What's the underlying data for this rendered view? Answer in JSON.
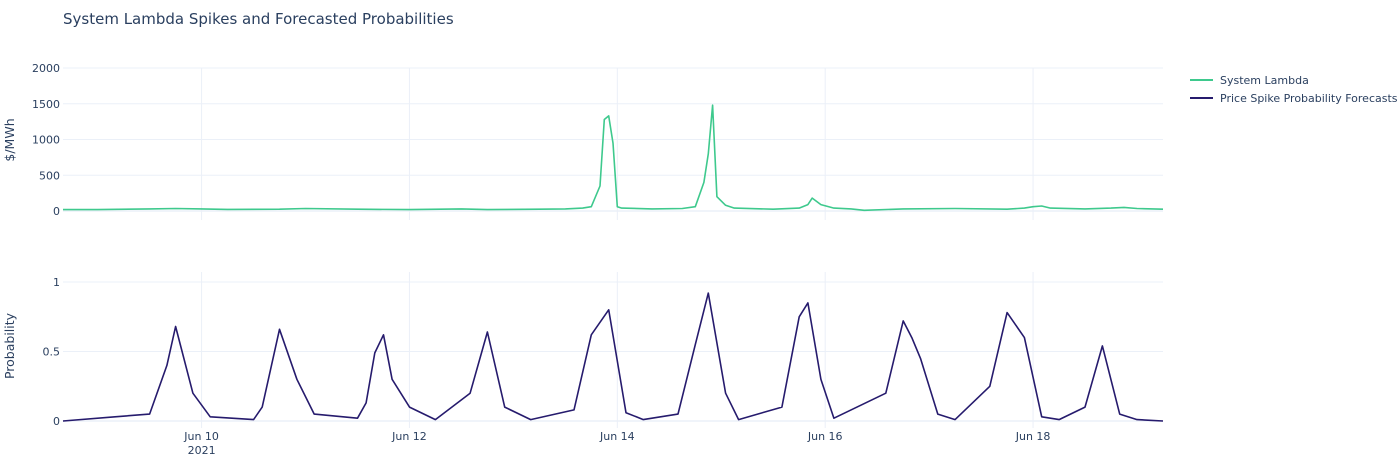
{
  "chart_data": {
    "type": "line",
    "title": "System Lambda Spikes and Forecasted Probabilities",
    "x_range": [
      "2021-06-08 16:00",
      "2021-06-19 06:00"
    ],
    "x_ticks": [
      {
        "value": "2021-06-10",
        "label": "Jun 10",
        "sublabel": "2021"
      },
      {
        "value": "2021-06-12",
        "label": "Jun 12",
        "sublabel": ""
      },
      {
        "value": "2021-06-14",
        "label": "Jun 14",
        "sublabel": ""
      },
      {
        "value": "2021-06-16",
        "label": "Jun 16",
        "sublabel": ""
      },
      {
        "value": "2021-06-18",
        "label": "Jun 18",
        "sublabel": ""
      }
    ],
    "legend": {
      "placement": "top-right",
      "entries": [
        {
          "name": "System Lambda",
          "color": "#3ec98d"
        },
        {
          "name": "Price Spike Probability Forecasts",
          "color": "#261b6d"
        }
      ]
    },
    "subplots": [
      {
        "ylabel": "$/MWh",
        "ylim": [
          0,
          2000
        ],
        "yticks": [
          {
            "value": 0,
            "label": "0"
          },
          {
            "value": 500,
            "label": "500"
          },
          {
            "value": 1000,
            "label": "1000"
          },
          {
            "value": 1500,
            "label": "1500"
          },
          {
            "value": 2000,
            "label": "2000"
          }
        ],
        "grid": true,
        "series": [
          {
            "name": "System Lambda",
            "color": "#3ec98d",
            "points": [
              [
                "2021-06-08 16:00",
                20
              ],
              [
                "2021-06-09 00:00",
                20
              ],
              [
                "2021-06-09 12:00",
                30
              ],
              [
                "2021-06-09 18:00",
                35
              ],
              [
                "2021-06-10 00:00",
                30
              ],
              [
                "2021-06-10 06:00",
                22
              ],
              [
                "2021-06-10 18:00",
                25
              ],
              [
                "2021-06-11 00:00",
                35
              ],
              [
                "2021-06-11 12:00",
                25
              ],
              [
                "2021-06-12 00:00",
                20
              ],
              [
                "2021-06-12 12:00",
                30
              ],
              [
                "2021-06-12 18:00",
                20
              ],
              [
                "2021-06-13 06:00",
                25
              ],
              [
                "2021-06-13 12:00",
                30
              ],
              [
                "2021-06-13 16:00",
                40
              ],
              [
                "2021-06-13 18:00",
                60
              ],
              [
                "2021-06-13 20:00",
                350
              ],
              [
                "2021-06-13 21:00",
                1280
              ],
              [
                "2021-06-13 22:00",
                1330
              ],
              [
                "2021-06-13 23:00",
                950
              ],
              [
                "2021-06-14 00:00",
                60
              ],
              [
                "2021-06-14 01:00",
                40
              ],
              [
                "2021-06-14 08:00",
                30
              ],
              [
                "2021-06-14 15:00",
                35
              ],
              [
                "2021-06-14 18:00",
                60
              ],
              [
                "2021-06-14 20:00",
                400
              ],
              [
                "2021-06-14 21:00",
                800
              ],
              [
                "2021-06-14 22:00",
                1480
              ],
              [
                "2021-06-14 23:00",
                200
              ],
              [
                "2021-06-15 01:00",
                80
              ],
              [
                "2021-06-15 03:00",
                40
              ],
              [
                "2021-06-15 12:00",
                25
              ],
              [
                "2021-06-15 18:00",
                40
              ],
              [
                "2021-06-15 20:00",
                90
              ],
              [
                "2021-06-15 21:00",
                180
              ],
              [
                "2021-06-15 23:00",
                90
              ],
              [
                "2021-06-16 02:00",
                40
              ],
              [
                "2021-06-16 06:00",
                30
              ],
              [
                "2021-06-16 09:00",
                10
              ],
              [
                "2021-06-16 18:00",
                30
              ],
              [
                "2021-06-17 06:00",
                35
              ],
              [
                "2021-06-17 18:00",
                25
              ],
              [
                "2021-06-17 22:00",
                40
              ],
              [
                "2021-06-18 00:00",
                60
              ],
              [
                "2021-06-18 02:00",
                70
              ],
              [
                "2021-06-18 04:00",
                40
              ],
              [
                "2021-06-18 12:00",
                30
              ],
              [
                "2021-06-18 18:00",
                40
              ],
              [
                "2021-06-18 21:00",
                50
              ],
              [
                "2021-06-19 00:00",
                35
              ],
              [
                "2021-06-19 06:00",
                25
              ]
            ]
          }
        ]
      },
      {
        "ylabel": "Probability",
        "ylim": [
          0,
          1.1
        ],
        "yticks": [
          {
            "value": 0,
            "label": "0"
          },
          {
            "value": 0.5,
            "label": "0.5"
          },
          {
            "value": 1,
            "label": "1"
          }
        ],
        "grid": true,
        "series": [
          {
            "name": "Price Spike Probability Forecasts",
            "color": "#261b6d",
            "points": [
              [
                "2021-06-08 16:00",
                0.0
              ],
              [
                "2021-06-09 04:00",
                0.03
              ],
              [
                "2021-06-09 12:00",
                0.05
              ],
              [
                "2021-06-09 16:00",
                0.4
              ],
              [
                "2021-06-09 18:00",
                0.68
              ],
              [
                "2021-06-09 22:00",
                0.2
              ],
              [
                "2021-06-10 02:00",
                0.03
              ],
              [
                "2021-06-10 12:00",
                0.01
              ],
              [
                "2021-06-10 14:00",
                0.1
              ],
              [
                "2021-06-10 18:00",
                0.66
              ],
              [
                "2021-06-10 22:00",
                0.3
              ],
              [
                "2021-06-11 02:00",
                0.05
              ],
              [
                "2021-06-11 12:00",
                0.02
              ],
              [
                "2021-06-11 14:00",
                0.13
              ],
              [
                "2021-06-11 16:00",
                0.49
              ],
              [
                "2021-06-11 18:00",
                0.62
              ],
              [
                "2021-06-11 20:00",
                0.3
              ],
              [
                "2021-06-12 00:00",
                0.1
              ],
              [
                "2021-06-12 06:00",
                0.01
              ],
              [
                "2021-06-12 14:00",
                0.2
              ],
              [
                "2021-06-12 18:00",
                0.64
              ],
              [
                "2021-06-12 22:00",
                0.1
              ],
              [
                "2021-06-13 04:00",
                0.01
              ],
              [
                "2021-06-13 14:00",
                0.08
              ],
              [
                "2021-06-13 18:00",
                0.62
              ],
              [
                "2021-06-13 22:00",
                0.8
              ],
              [
                "2021-06-14 02:00",
                0.06
              ],
              [
                "2021-06-14 06:00",
                0.01
              ],
              [
                "2021-06-14 14:00",
                0.05
              ],
              [
                "2021-06-14 18:00",
                0.55
              ],
              [
                "2021-06-14 21:00",
                0.92
              ],
              [
                "2021-06-15 01:00",
                0.2
              ],
              [
                "2021-06-15 04:00",
                0.01
              ],
              [
                "2021-06-15 14:00",
                0.1
              ],
              [
                "2021-06-15 18:00",
                0.75
              ],
              [
                "2021-06-15 20:00",
                0.85
              ],
              [
                "2021-06-15 23:00",
                0.3
              ],
              [
                "2021-06-16 02:00",
                0.02
              ],
              [
                "2021-06-16 14:00",
                0.2
              ],
              [
                "2021-06-16 18:00",
                0.72
              ],
              [
                "2021-06-16 20:00",
                0.6
              ],
              [
                "2021-06-16 22:00",
                0.45
              ],
              [
                "2021-06-17 02:00",
                0.05
              ],
              [
                "2021-06-17 06:00",
                0.01
              ],
              [
                "2021-06-17 14:00",
                0.25
              ],
              [
                "2021-06-17 18:00",
                0.78
              ],
              [
                "2021-06-17 22:00",
                0.6
              ],
              [
                "2021-06-18 02:00",
                0.03
              ],
              [
                "2021-06-18 06:00",
                0.01
              ],
              [
                "2021-06-18 12:00",
                0.1
              ],
              [
                "2021-06-18 16:00",
                0.54
              ],
              [
                "2021-06-18 20:00",
                0.05
              ],
              [
                "2021-06-19 00:00",
                0.01
              ],
              [
                "2021-06-19 06:00",
                0.0
              ]
            ]
          }
        ]
      }
    ]
  }
}
